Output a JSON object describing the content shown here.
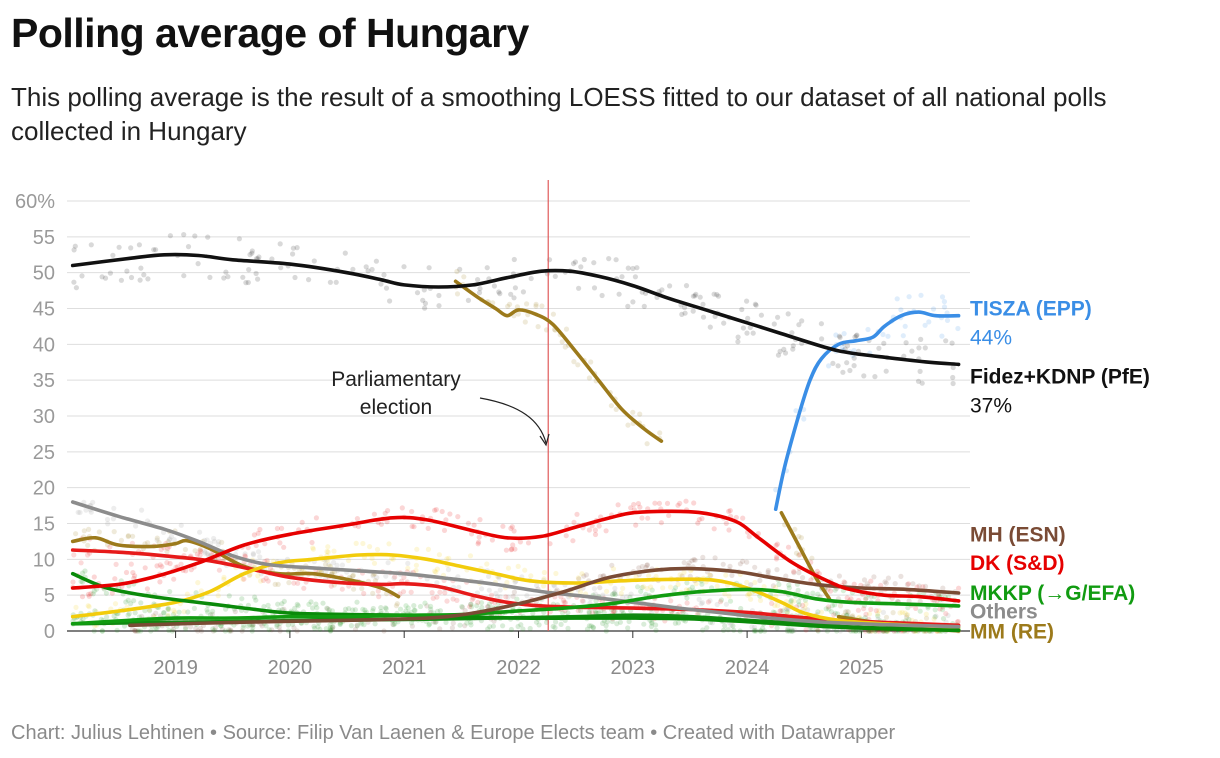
{
  "title": "Polling average of Hungary",
  "subtitle": "This polling average is the result of a smoothing LOESS fitted to our dataset of all national polls collected in Hungary",
  "footer": "Chart: Julius Lehtinen • Source: Filip Van Laenen & Europe Elects team • Created with Datawrapper",
  "chart_data": {
    "type": "line",
    "x_unit": "year",
    "xlim": [
      2018.05,
      2025.95
    ],
    "ylim": [
      0,
      60
    ],
    "y_ticks": [
      {
        "value": 0,
        "label": "0"
      },
      {
        "value": 5,
        "label": "5"
      },
      {
        "value": 10,
        "label": "10"
      },
      {
        "value": 15,
        "label": "15"
      },
      {
        "value": 20,
        "label": "20"
      },
      {
        "value": 25,
        "label": "25"
      },
      {
        "value": 30,
        "label": "30"
      },
      {
        "value": 35,
        "label": "35"
      },
      {
        "value": 40,
        "label": "40"
      },
      {
        "value": 45,
        "label": "45"
      },
      {
        "value": 50,
        "label": "50"
      },
      {
        "value": 55,
        "label": "55"
      },
      {
        "value": 60,
        "label": "60%"
      }
    ],
    "x_ticks": [
      {
        "value": 2019,
        "label": "2019"
      },
      {
        "value": 2020,
        "label": "2020"
      },
      {
        "value": 2021,
        "label": "2021"
      },
      {
        "value": 2022,
        "label": "2022"
      },
      {
        "value": 2023,
        "label": "2023"
      },
      {
        "value": 2024,
        "label": "2024"
      },
      {
        "value": 2025,
        "label": "2025"
      }
    ],
    "grid": true,
    "annotation": {
      "x": 2022.26,
      "lines": [
        "Parliamentary",
        "election"
      ]
    },
    "series": [
      {
        "name": "TISZA (EPP)",
        "color": "#3a8ee6",
        "value_label": "44%",
        "label_y": 45,
        "points": [
          [
            2024.25,
            17
          ],
          [
            2024.33,
            23
          ],
          [
            2024.45,
            30
          ],
          [
            2024.55,
            35
          ],
          [
            2024.65,
            38
          ],
          [
            2024.8,
            40
          ],
          [
            2024.95,
            40.5
          ],
          [
            2025.1,
            41
          ],
          [
            2025.2,
            42.5
          ],
          [
            2025.35,
            44
          ],
          [
            2025.5,
            44.5
          ],
          [
            2025.65,
            44
          ],
          [
            2025.85,
            44
          ]
        ]
      },
      {
        "name": "Fidez+KDNP (PfE)",
        "color": "#111111",
        "value_label": "37%",
        "label_y": 35.5,
        "points": [
          [
            2018.1,
            51
          ],
          [
            2018.6,
            52
          ],
          [
            2018.9,
            52.5
          ],
          [
            2019.2,
            52.4
          ],
          [
            2019.5,
            51.8
          ],
          [
            2020.0,
            51.2
          ],
          [
            2020.5,
            50
          ],
          [
            2020.8,
            49
          ],
          [
            2021.0,
            48.3
          ],
          [
            2021.3,
            48
          ],
          [
            2021.6,
            48.3
          ],
          [
            2021.9,
            49.3
          ],
          [
            2022.2,
            50.2
          ],
          [
            2022.45,
            50.2
          ],
          [
            2022.7,
            49.5
          ],
          [
            2023.0,
            48.2
          ],
          [
            2023.3,
            46.5
          ],
          [
            2023.7,
            44.5
          ],
          [
            2024.0,
            43
          ],
          [
            2024.3,
            41.5
          ],
          [
            2024.7,
            39.5
          ],
          [
            2024.9,
            38.8
          ],
          [
            2025.2,
            38.2
          ],
          [
            2025.6,
            37.5
          ],
          [
            2025.85,
            37.2
          ]
        ]
      },
      {
        "name": "MH (ESN)",
        "color": "#7a4b35",
        "label_y": 13.5,
        "points": [
          [
            2018.6,
            0.8
          ],
          [
            2019.5,
            1.2
          ],
          [
            2020.5,
            1.5
          ],
          [
            2021.2,
            1.8
          ],
          [
            2021.6,
            2.5
          ],
          [
            2022.0,
            3.8
          ],
          [
            2022.4,
            5.5
          ],
          [
            2022.8,
            7.5
          ],
          [
            2023.2,
            8.5
          ],
          [
            2023.5,
            8.7
          ],
          [
            2023.9,
            8.3
          ],
          [
            2024.2,
            7.5
          ],
          [
            2024.6,
            6.5
          ],
          [
            2025.0,
            6
          ],
          [
            2025.4,
            5.8
          ],
          [
            2025.85,
            5.3
          ]
        ]
      },
      {
        "name": "DK (S&D)",
        "color": "#e60000",
        "label_y": 9.5,
        "points": [
          [
            2018.1,
            6
          ],
          [
            2018.5,
            6.5
          ],
          [
            2018.8,
            7.5
          ],
          [
            2019.2,
            9.5
          ],
          [
            2019.6,
            12
          ],
          [
            2020.0,
            13.5
          ],
          [
            2020.5,
            14.8
          ],
          [
            2020.9,
            15.8
          ],
          [
            2021.2,
            15.5
          ],
          [
            2021.6,
            14
          ],
          [
            2021.9,
            13
          ],
          [
            2022.2,
            13.2
          ],
          [
            2022.5,
            14.5
          ],
          [
            2022.8,
            15.8
          ],
          [
            2023.0,
            16.5
          ],
          [
            2023.3,
            16.7
          ],
          [
            2023.6,
            16.5
          ],
          [
            2023.9,
            15.3
          ],
          [
            2024.1,
            13
          ],
          [
            2024.4,
            9.5
          ],
          [
            2024.7,
            7
          ],
          [
            2024.9,
            5.8
          ],
          [
            2025.2,
            5
          ],
          [
            2025.5,
            4.8
          ],
          [
            2025.85,
            4.2
          ]
        ]
      },
      {
        "name": "MKKP (→G/EFA)",
        "color": "#119b11",
        "label_y": 5.3,
        "points": [
          [
            2018.1,
            1
          ],
          [
            2018.6,
            1.5
          ],
          [
            2019.0,
            1.8
          ],
          [
            2019.5,
            1.8
          ],
          [
            2020.0,
            2
          ],
          [
            2020.5,
            2
          ],
          [
            2021.0,
            2.2
          ],
          [
            2021.5,
            2.3
          ],
          [
            2022.0,
            2.8
          ],
          [
            2022.4,
            3.2
          ],
          [
            2022.8,
            3.8
          ],
          [
            2023.2,
            4.8
          ],
          [
            2023.6,
            5.5
          ],
          [
            2024.0,
            5.8
          ],
          [
            2024.3,
            5.5
          ],
          [
            2024.6,
            4.5
          ],
          [
            2024.9,
            4
          ],
          [
            2025.3,
            3.8
          ],
          [
            2025.85,
            3.5
          ]
        ]
      },
      {
        "name": "Others",
        "color": "#8c8c8c",
        "label_y": 2.7,
        "points": [
          [
            2018.1,
            18
          ],
          [
            2018.5,
            16
          ],
          [
            2018.9,
            14.2
          ],
          [
            2019.2,
            12.5
          ],
          [
            2019.5,
            10.5
          ],
          [
            2019.8,
            9.3
          ],
          [
            2020.2,
            8.8
          ],
          [
            2020.6,
            8.4
          ],
          [
            2021.0,
            8
          ],
          [
            2021.4,
            7.3
          ],
          [
            2021.8,
            6.5
          ],
          [
            2022.2,
            5.5
          ],
          [
            2022.6,
            4.8
          ],
          [
            2023.0,
            4
          ],
          [
            2023.4,
            3.2
          ],
          [
            2023.8,
            2.5
          ],
          [
            2024.2,
            1.8
          ],
          [
            2024.6,
            1.3
          ],
          [
            2025.0,
            1
          ],
          [
            2025.4,
            0.8
          ],
          [
            2025.85,
            0.6
          ]
        ]
      },
      {
        "name": "MM (RE)",
        "color": "#9c7a1b",
        "label_y": -0.1,
        "points": [
          [
            2018.1,
            12.5
          ],
          [
            2018.3,
            13
          ],
          [
            2018.5,
            12
          ],
          [
            2018.8,
            11.8
          ],
          [
            2019.0,
            12.2
          ],
          [
            2019.1,
            12.6
          ],
          [
            2019.3,
            11.5
          ],
          [
            2019.6,
            9
          ],
          [
            2019.9,
            8
          ],
          [
            2020.2,
            8
          ],
          [
            2020.5,
            7.2
          ],
          [
            2020.8,
            6
          ],
          [
            2020.95,
            4.8
          ]
        ],
        "segments": [
          [
            [
              2021.45,
              48.8
            ],
            [
              2021.65,
              46.5
            ],
            [
              2021.8,
              45
            ],
            [
              2021.9,
              44
            ],
            [
              2022.0,
              44.8
            ],
            [
              2022.15,
              44.2
            ],
            [
              2022.3,
              42.8
            ],
            [
              2022.5,
              39
            ],
            [
              2022.7,
              35
            ],
            [
              2022.9,
              31
            ],
            [
              2023.1,
              28.2
            ],
            [
              2023.25,
              26.5
            ]
          ],
          [
            [
              2024.3,
              16.5
            ],
            [
              2024.45,
              12
            ],
            [
              2024.6,
              7.5
            ],
            [
              2024.72,
              4.5
            ]
          ],
          [
            [
              2024.8,
              2
            ],
            [
              2025.2,
              1
            ],
            [
              2025.6,
              0.3
            ],
            [
              2025.85,
              0
            ]
          ]
        ]
      },
      {
        "name": "",
        "color": "#f2cc0c",
        "points": [
          [
            2018.1,
            2
          ],
          [
            2018.6,
            3
          ],
          [
            2019.0,
            4
          ],
          [
            2019.3,
            5.5
          ],
          [
            2019.6,
            8
          ],
          [
            2019.9,
            9.5
          ],
          [
            2020.2,
            10
          ],
          [
            2020.6,
            10.6
          ],
          [
            2020.9,
            10.6
          ],
          [
            2021.2,
            10
          ],
          [
            2021.5,
            9
          ],
          [
            2021.8,
            8
          ],
          [
            2022.1,
            7
          ],
          [
            2022.5,
            6.7
          ],
          [
            2022.9,
            7
          ],
          [
            2023.3,
            7.2
          ],
          [
            2023.7,
            7.1
          ],
          [
            2024.0,
            6
          ],
          [
            2024.3,
            4
          ],
          [
            2024.5,
            2.5
          ],
          [
            2024.8,
            1.5
          ],
          [
            2025.2,
            1
          ],
          [
            2025.85,
            0.5
          ]
        ]
      },
      {
        "name": "",
        "color": "#0a8a0a",
        "points": [
          [
            2018.1,
            8
          ],
          [
            2018.4,
            6
          ],
          [
            2018.8,
            4.8
          ],
          [
            2019.3,
            3.8
          ],
          [
            2019.6,
            3.2
          ],
          [
            2020.0,
            2.5
          ],
          [
            2020.5,
            2.3
          ],
          [
            2021.0,
            2.2
          ],
          [
            2021.5,
            2
          ],
          [
            2022.0,
            1.8
          ],
          [
            2022.5,
            1.8
          ],
          [
            2023.0,
            1.8
          ],
          [
            2023.5,
            1.7
          ],
          [
            2024.0,
            1.3
          ],
          [
            2024.5,
            0.8
          ],
          [
            2025.0,
            0.4
          ],
          [
            2025.85,
            0.1
          ]
        ]
      },
      {
        "name": "",
        "color": "#e61a1a",
        "points": [
          [
            2018.1,
            11.3
          ],
          [
            2018.5,
            11
          ],
          [
            2018.9,
            10.5
          ],
          [
            2019.3,
            9.8
          ],
          [
            2019.7,
            8.5
          ],
          [
            2020.0,
            7.5
          ],
          [
            2020.4,
            6.8
          ],
          [
            2020.8,
            6.5
          ],
          [
            2021.0,
            6.6
          ],
          [
            2021.3,
            6.2
          ],
          [
            2021.6,
            5
          ],
          [
            2021.9,
            4
          ],
          [
            2022.2,
            3.5
          ],
          [
            2022.6,
            3.3
          ],
          [
            2023.0,
            3.2
          ],
          [
            2023.5,
            3
          ],
          [
            2024.0,
            2.6
          ],
          [
            2024.4,
            2
          ],
          [
            2024.8,
            1.5
          ],
          [
            2025.2,
            1.2
          ],
          [
            2025.85,
            0.8
          ]
        ]
      },
      {
        "name": "",
        "color": "#118811",
        "points": [
          [
            2018.1,
            1
          ],
          [
            2018.8,
            1.2
          ],
          [
            2019.5,
            1.3
          ],
          [
            2020.2,
            1.5
          ],
          [
            2021.0,
            1.6
          ],
          [
            2021.8,
            1.8
          ],
          [
            2022.5,
            2
          ],
          [
            2023.0,
            2.2
          ],
          [
            2023.5,
            2
          ],
          [
            2024.0,
            1.5
          ],
          [
            2024.5,
            1
          ],
          [
            2025.0,
            0.5
          ],
          [
            2025.85,
            0.2
          ]
        ]
      }
    ]
  }
}
